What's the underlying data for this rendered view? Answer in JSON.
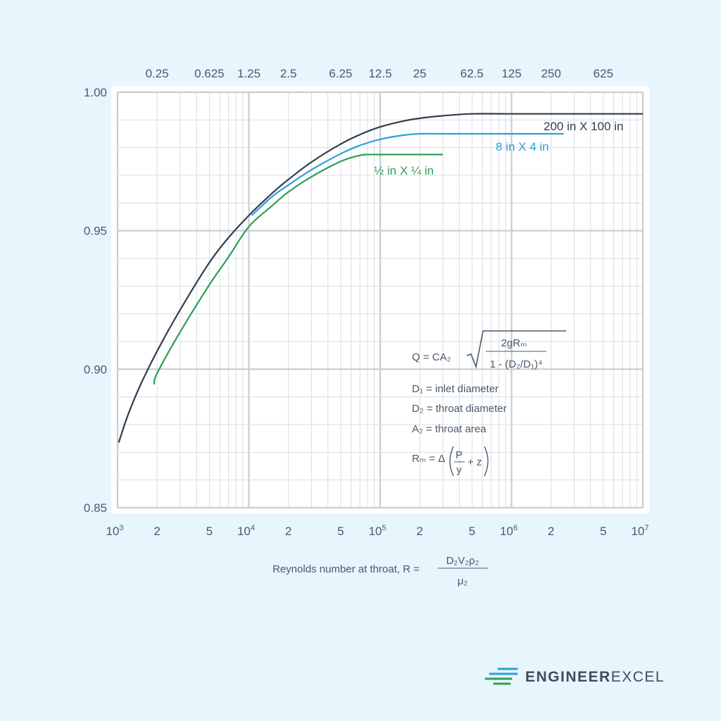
{
  "chart_data": {
    "type": "line",
    "x_scale": "log",
    "x_range": [
      1000,
      10000000
    ],
    "y_range": [
      0.85,
      1.0
    ],
    "x_ticks": [
      {
        "v": 1000,
        "base": "10",
        "exp": "3"
      },
      {
        "v": 2000,
        "label": "2"
      },
      {
        "v": 5000,
        "label": "5"
      },
      {
        "v": 10000,
        "base": "10",
        "exp": "4"
      },
      {
        "v": 20000,
        "label": "2"
      },
      {
        "v": 50000,
        "label": "5"
      },
      {
        "v": 100000,
        "base": "10",
        "exp": "5"
      },
      {
        "v": 200000,
        "label": "2"
      },
      {
        "v": 500000,
        "label": "5"
      },
      {
        "v": 1000000,
        "base": "10",
        "exp": "6"
      },
      {
        "v": 2000000,
        "label": "2"
      },
      {
        "v": 5000000,
        "label": "5"
      },
      {
        "v": 10000000,
        "base": "10",
        "exp": "7"
      }
    ],
    "y_ticks": [
      {
        "v": 1.0,
        "label": "1.00"
      },
      {
        "v": 0.95,
        "label": "0.95"
      },
      {
        "v": 0.9,
        "label": "0.90"
      },
      {
        "v": 0.85,
        "label": "0.85"
      }
    ],
    "top_ticks": [
      {
        "v": 2000,
        "label": "0.25"
      },
      {
        "v": 5000,
        "label": "0.625"
      },
      {
        "v": 10000,
        "label": "1.25"
      },
      {
        "v": 20000,
        "label": "2.5"
      },
      {
        "v": 50000,
        "label": "6.25"
      },
      {
        "v": 100000,
        "label": "12.5"
      },
      {
        "v": 200000,
        "label": "25"
      },
      {
        "v": 500000,
        "label": "62.5"
      },
      {
        "v": 1000000,
        "label": "125"
      },
      {
        "v": 2000000,
        "label": "250"
      },
      {
        "v": 5000000,
        "label": "625"
      }
    ],
    "series": [
      {
        "name": "200 in X 100 in",
        "color": "#2f3f4f",
        "x": [
          1020,
          1200,
          1500,
          2000,
          3000,
          5000,
          7000,
          10000,
          15000,
          20000,
          30000,
          50000,
          70000,
          100000,
          150000,
          200000,
          300000,
          500000,
          1000000,
          2000000,
          5000000,
          10000000
        ],
        "y": [
          0.8735,
          0.8835,
          0.8945,
          0.9065,
          0.9215,
          0.9385,
          0.9475,
          0.9555,
          0.9635,
          0.9685,
          0.9748,
          0.9813,
          0.9847,
          0.9875,
          0.9896,
          0.9906,
          0.9915,
          0.9922,
          0.9922,
          0.9922,
          0.9922,
          0.9922
        ]
      },
      {
        "name": "8 in X 4 in",
        "color": "#2d9fdc",
        "x": [
          10500,
          15000,
          20000,
          30000,
          50000,
          70000,
          100000,
          150000,
          200000,
          300000,
          500000,
          1000000,
          2500000
        ],
        "y": [
          0.9555,
          0.9623,
          0.9665,
          0.972,
          0.9778,
          0.9808,
          0.983,
          0.9845,
          0.985,
          0.985,
          0.985,
          0.985,
          0.985
        ]
      },
      {
        "name": "½ in X ¼ in",
        "color": "#2e9e57",
        "x": [
          1900,
          2000,
          3000,
          5000,
          7000,
          10000,
          15000,
          20000,
          30000,
          50000,
          70000,
          85000,
          100000,
          200000,
          300000
        ],
        "y": [
          0.8945,
          0.8985,
          0.9135,
          0.9305,
          0.9405,
          0.9515,
          0.959,
          0.964,
          0.9695,
          0.975,
          0.9772,
          0.9775,
          0.9775,
          0.9775,
          0.9775
        ]
      }
    ],
    "xlabel": "Reynolds number at throat, R =",
    "xlabel_fraction": {
      "numerator": "D₂V₂ρ₂",
      "denominator": "μ₂"
    },
    "equations": {
      "q": "Q = CA₂",
      "q_num": "2gRₘ",
      "q_den": "1 - (D₂/D₁)⁴",
      "d1": "D₁ = inlet diameter",
      "d2": "D₂ =  throat diameter",
      "a2": "A₂ = throat area",
      "rm": "Rₘ = Δ",
      "rm_num": "P",
      "rm_den": "y",
      "rm_tail": "+ z"
    },
    "grid": true,
    "legend": "inline-labels"
  },
  "logo": {
    "text_bold": "ENGINEER",
    "text_regular": "EXCEL"
  }
}
